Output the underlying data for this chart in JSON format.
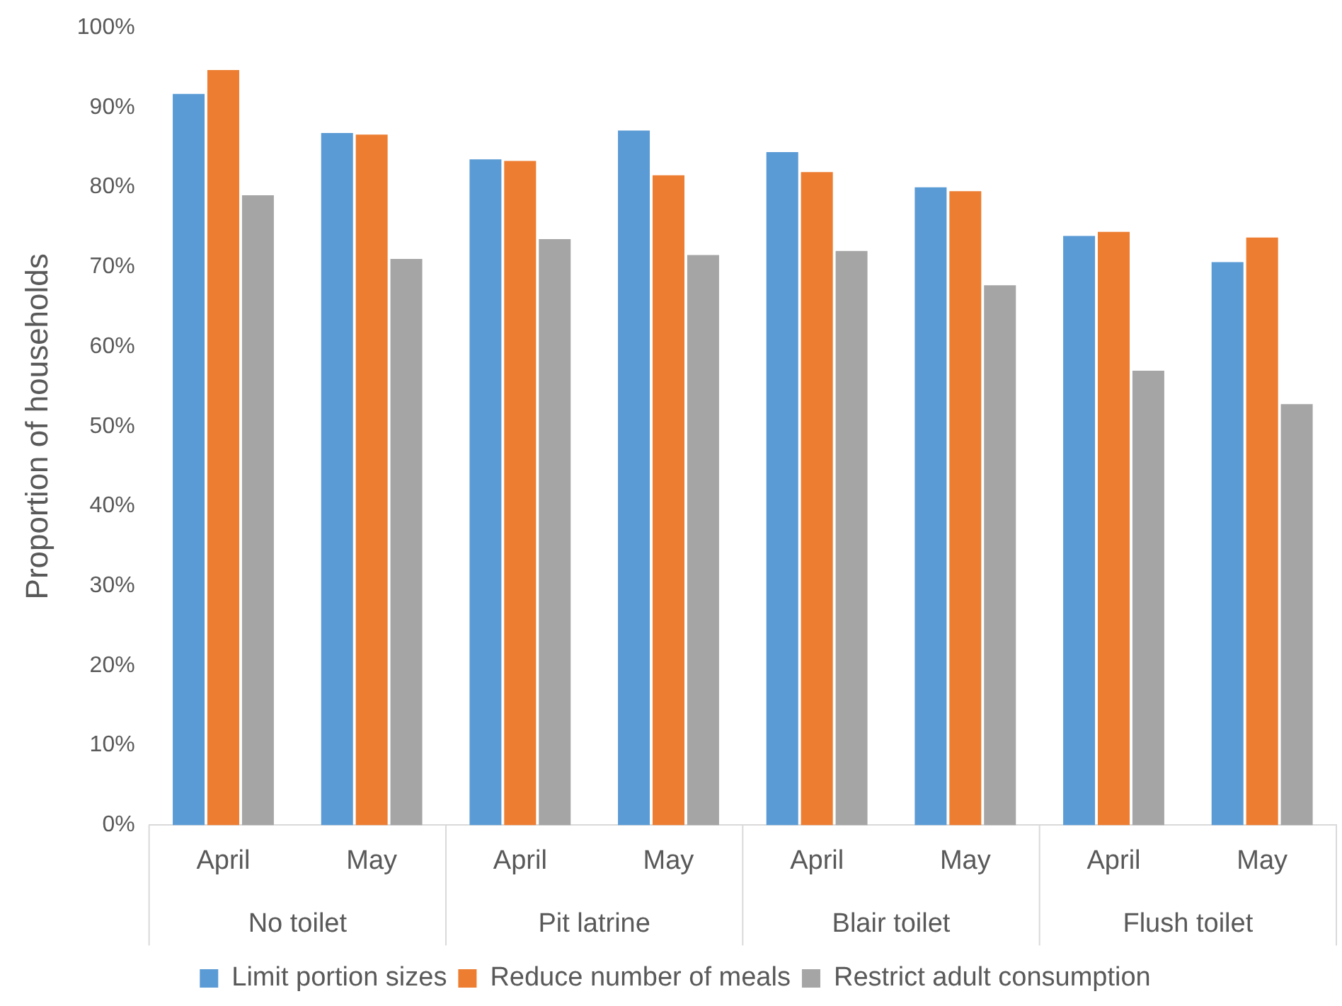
{
  "chart_data": {
    "type": "bar",
    "ylabel": "Proportion of households",
    "categories": [
      "April",
      "May",
      "April",
      "May",
      "April",
      "May",
      "April",
      "May"
    ],
    "series": [
      {
        "name": "Limit portion sizes",
        "color": "#5b9bd5",
        "values": [
          91.7,
          86.8,
          83.5,
          87.1,
          84.4,
          80.0,
          73.9,
          70.6
        ]
      },
      {
        "name": "Reduce number of meals",
        "color": "#ed7d31",
        "values": [
          94.7,
          86.6,
          83.3,
          81.5,
          81.9,
          79.5,
          74.4,
          73.7
        ]
      },
      {
        "name": "Restrict adult consumption",
        "color": "#a5a5a5",
        "values": [
          79.0,
          71.0,
          73.5,
          71.5,
          72.0,
          67.7,
          57.0,
          52.8
        ]
      }
    ],
    "annotations": [
      "No toilet",
      "Pit latrine",
      "Blair toilet",
      "Flush toilet"
    ],
    "ylim": [
      0,
      100
    ],
    "yticks": [
      {
        "value": 0,
        "label": "0%"
      },
      {
        "value": 10,
        "label": "10%"
      },
      {
        "value": 20,
        "label": "20%"
      },
      {
        "value": 30,
        "label": "30%"
      },
      {
        "value": 40,
        "label": "40%"
      },
      {
        "value": 50,
        "label": "50%"
      },
      {
        "value": 60,
        "label": "60%"
      },
      {
        "value": 70,
        "label": "70%"
      },
      {
        "value": 80,
        "label": "80%"
      },
      {
        "value": 90,
        "label": "90%"
      },
      {
        "value": 100,
        "label": "100%"
      }
    ],
    "grid": false,
    "legend": "bottom"
  }
}
